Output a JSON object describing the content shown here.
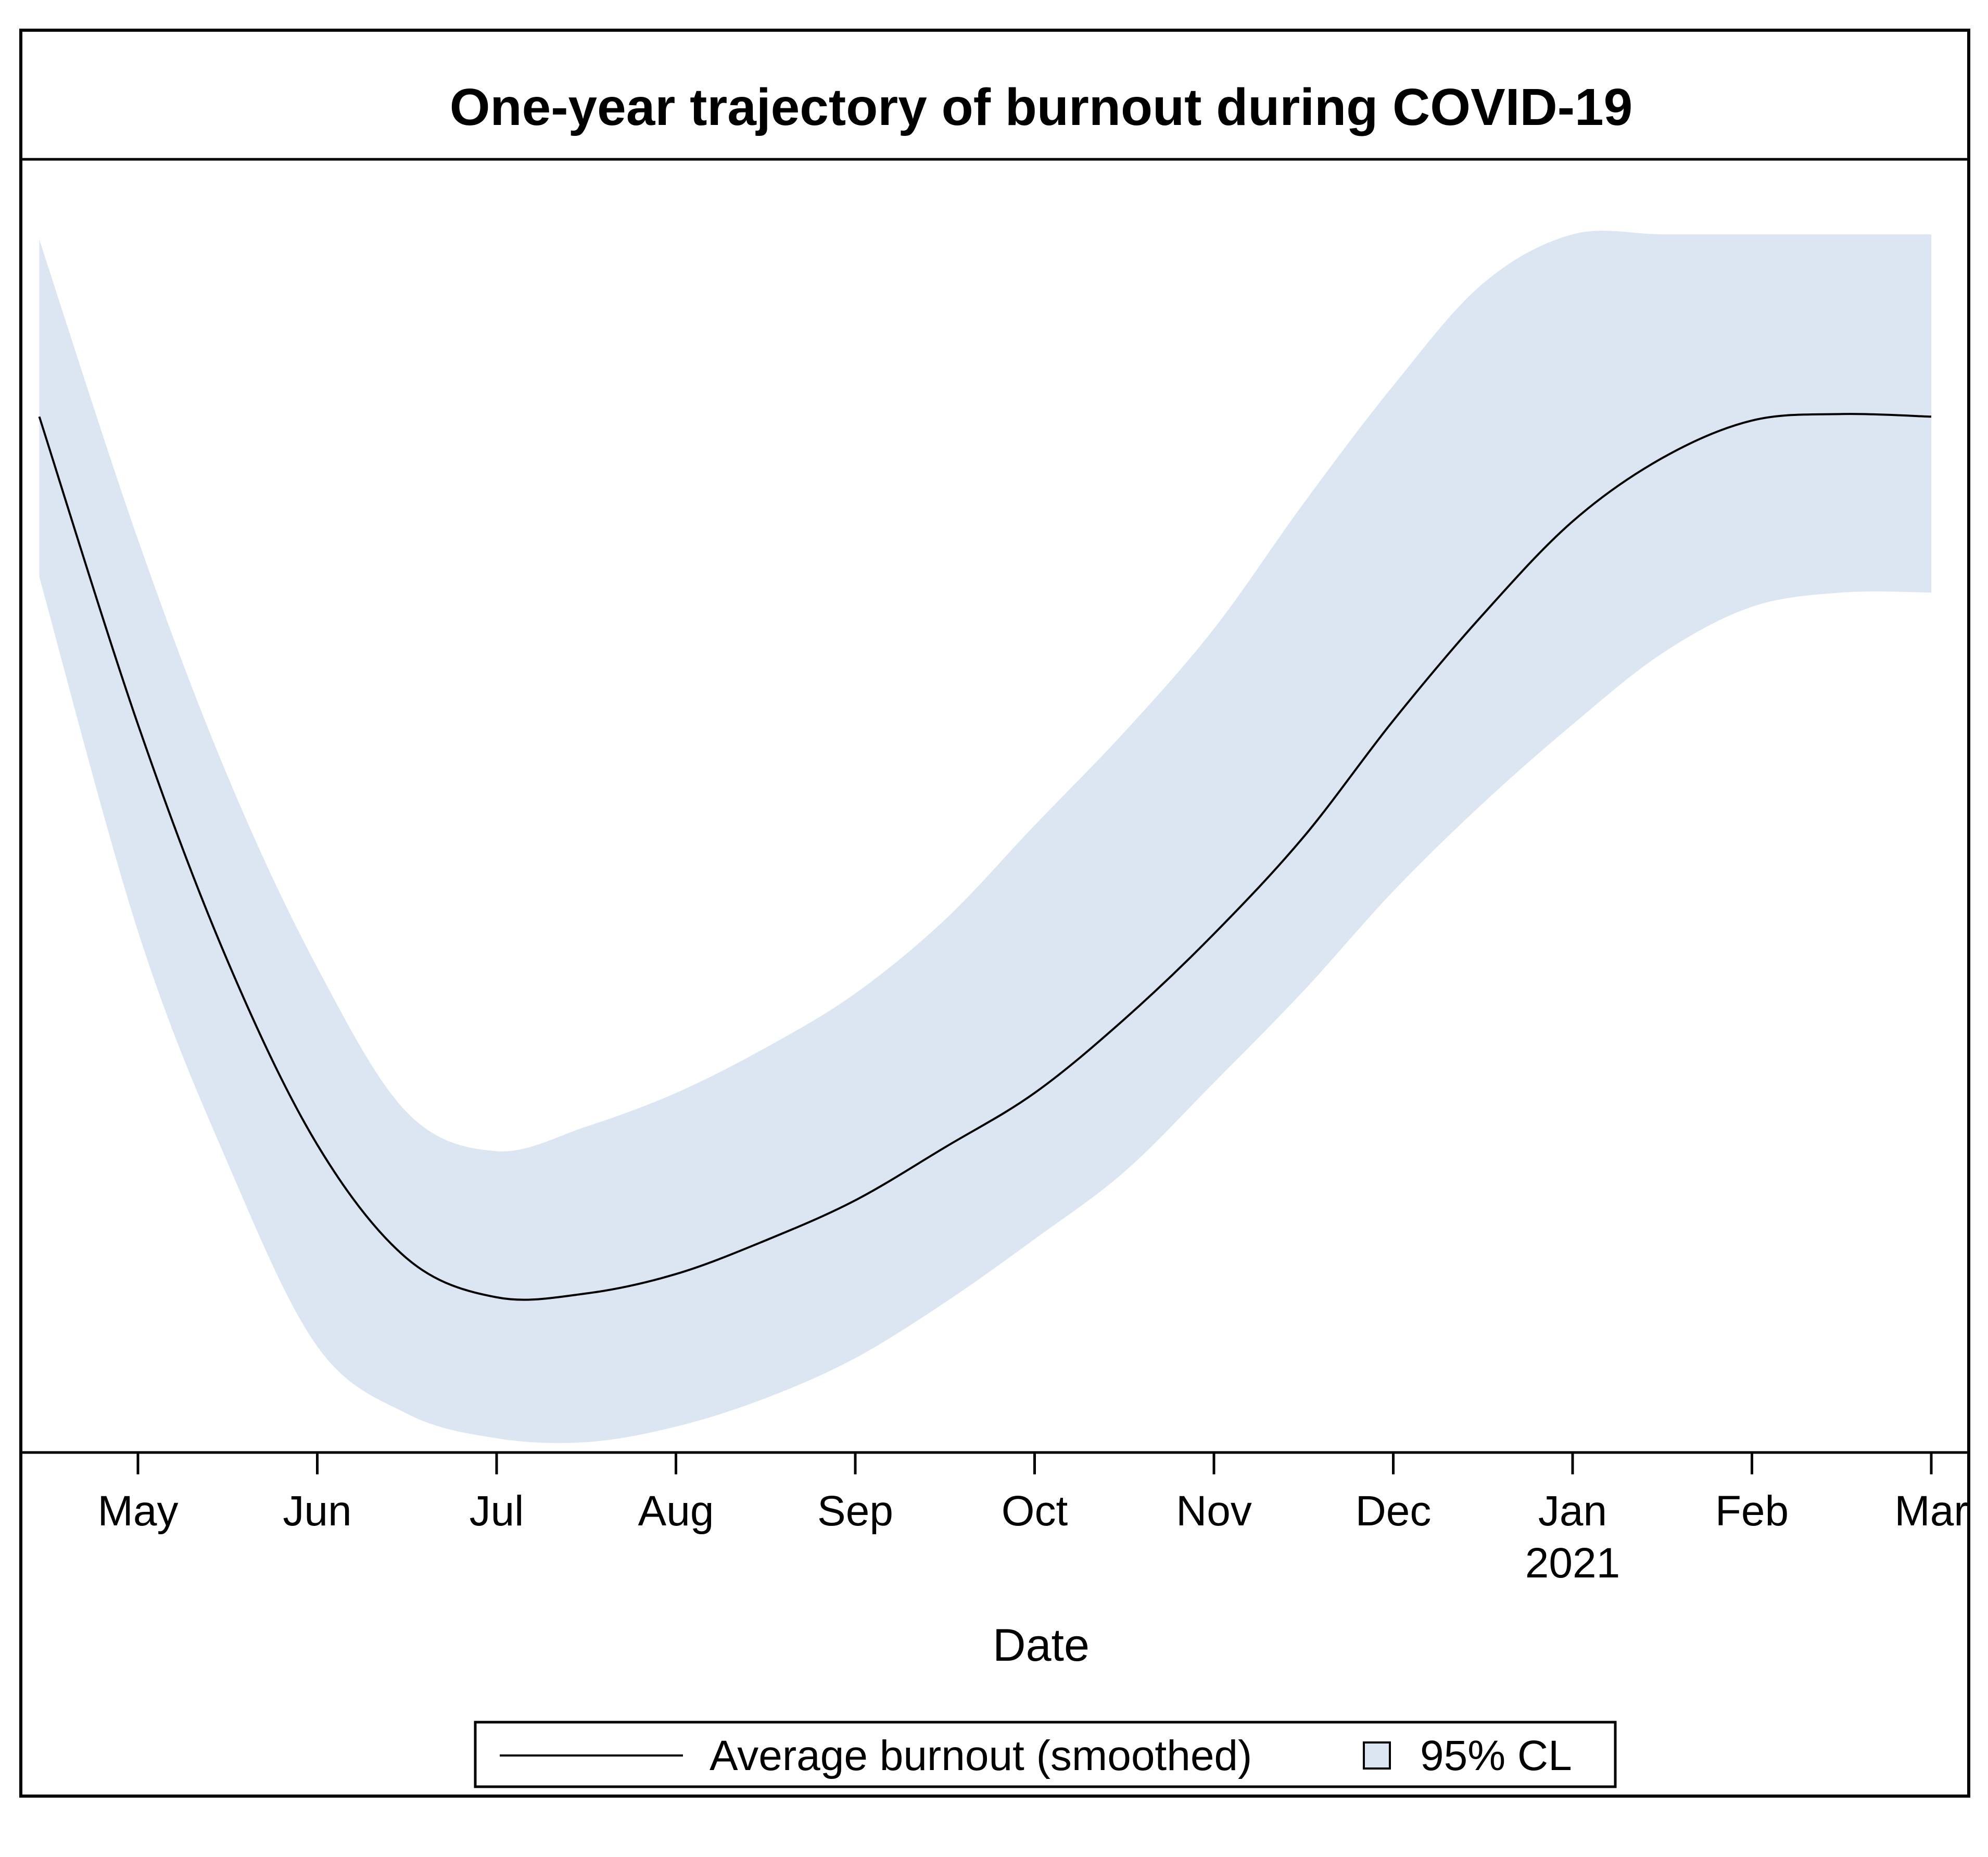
{
  "chart_data": {
    "type": "line",
    "title": "One-year trajectory of burnout during COVID-19",
    "xlabel": "Date",
    "ylabel": "",
    "x_axis": {
      "type": "date",
      "ticks": [
        "May",
        "Jun",
        "Jul",
        "Aug",
        "Sep",
        "Oct",
        "Nov",
        "Dec",
        "Jan",
        "Feb",
        "Mar"
      ],
      "year_label": {
        "under_tick": "Jan",
        "text": "2021"
      },
      "range_months_since_may_1_2020": [
        -0.55,
        10.0
      ]
    },
    "y_axis": {
      "shown": false,
      "unit_note": "relative scale (no tick labels shown)",
      "range": [
        0,
        100
      ]
    },
    "grid": false,
    "series": [
      {
        "name": "Average burnout (smoothed)",
        "kind": "line",
        "color": "#000000",
        "x_months_since_may_1_2020": [
          -0.55,
          0.0,
          0.5,
          1.0,
          1.5,
          2.0,
          2.5,
          3.0,
          3.5,
          4.0,
          4.5,
          5.0,
          5.5,
          6.0,
          6.5,
          7.0,
          7.5,
          8.0,
          8.5,
          9.0,
          9.5,
          10.0
        ],
        "values": [
          80.1,
          56.3,
          38.0,
          23.8,
          15.0,
          12.0,
          12.3,
          13.8,
          16.4,
          19.5,
          23.6,
          27.8,
          33.5,
          40.1,
          47.6,
          56.6,
          64.8,
          72.0,
          76.9,
          79.8,
          80.3,
          80.1
        ]
      }
    ],
    "bands": [
      {
        "name": "95% CL",
        "color": "#dce6f2",
        "x_months_since_may_1_2020": [
          -0.55,
          0.0,
          0.5,
          1.0,
          1.5,
          2.0,
          2.5,
          3.0,
          3.5,
          4.0,
          4.5,
          5.0,
          5.5,
          6.0,
          6.5,
          7.0,
          7.5,
          8.0,
          8.5,
          9.0,
          9.5,
          10.0
        ],
        "lower": [
          67.7,
          40.3,
          22.4,
          8.2,
          3.0,
          1.1,
          0.8,
          2.0,
          4.2,
          7.3,
          11.6,
          16.5,
          21.7,
          28.6,
          35.7,
          43.4,
          50.2,
          56.3,
          61.8,
          65.4,
          66.5,
          66.5
        ],
        "upper": [
          93.8,
          70.6,
          52.3,
          37.5,
          26.3,
          23.3,
          25.2,
          27.8,
          31.3,
          35.5,
          41.2,
          48.5,
          55.7,
          63.7,
          73.4,
          82.5,
          90.4,
          94.2,
          94.2,
          94.2,
          94.2,
          94.2
        ]
      }
    ],
    "legend": {
      "placement": "bottom-center",
      "entries": [
        {
          "label": "Average burnout (smoothed)",
          "symbol": "line"
        },
        {
          "label": "95% CL",
          "symbol": "box"
        }
      ]
    }
  }
}
